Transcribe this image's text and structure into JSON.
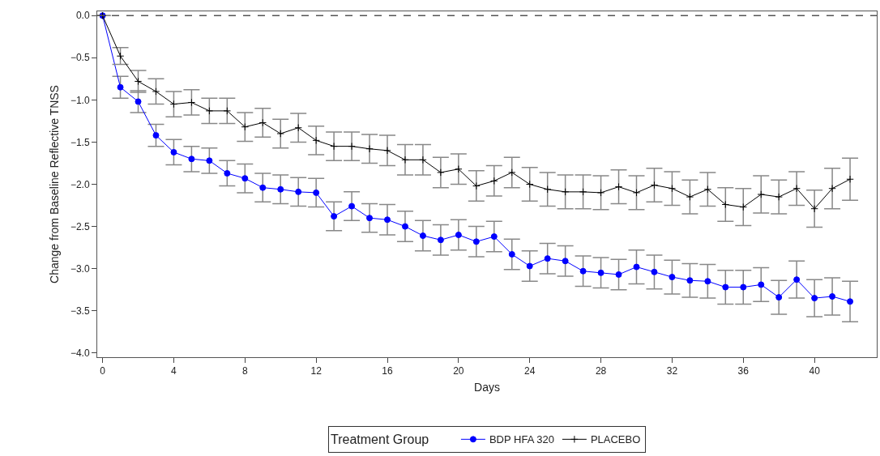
{
  "chart_data": {
    "type": "line",
    "xlabel": "Days",
    "ylabel": "Change from Baseline Reflective TNSS",
    "legend_title": "Treatment Group",
    "legend": "bottom",
    "grid": false,
    "line_style": "solid",
    "x": [
      0,
      1,
      2,
      3,
      4,
      5,
      6,
      7,
      8,
      9,
      10,
      11,
      12,
      13,
      14,
      15,
      16,
      17,
      18,
      19,
      20,
      21,
      22,
      23,
      24,
      25,
      26,
      27,
      28,
      29,
      30,
      31,
      32,
      33,
      34,
      35,
      36,
      37,
      38,
      39,
      40,
      41,
      42
    ],
    "xlim": [
      -0.3,
      43.5
    ],
    "xticks": [
      0,
      4,
      8,
      12,
      16,
      20,
      24,
      28,
      32,
      36,
      40
    ],
    "ylim": [
      -4.05,
      0.05
    ],
    "yticks": [
      {
        "value": 0,
        "label": "0.0"
      },
      {
        "value": -0.5,
        "label": "−0.5"
      },
      {
        "value": -1,
        "label": "−1.0"
      },
      {
        "value": -1.5,
        "label": "−1.5"
      },
      {
        "value": -2,
        "label": "−2.0"
      },
      {
        "value": -2.5,
        "label": "−2.5"
      },
      {
        "value": -3,
        "label": "−3.0"
      },
      {
        "value": -3.5,
        "label": "−3.5"
      },
      {
        "value": -4,
        "label": "−4.0"
      }
    ],
    "ref_lines": [
      {
        "axis": "y",
        "value": 0,
        "color": "#555555",
        "line_style": "dashed"
      }
    ],
    "series": [
      {
        "name": "BDP HFA 320",
        "color": "#0000ff",
        "marker": "circle",
        "values": [
          0,
          -0.85,
          -1.02,
          -1.42,
          -1.62,
          -1.7,
          -1.72,
          -1.87,
          -1.93,
          -2.04,
          -2.06,
          -2.09,
          -2.1,
          -2.38,
          -2.26,
          -2.4,
          -2.42,
          -2.5,
          -2.61,
          -2.66,
          -2.6,
          -2.68,
          -2.62,
          -2.83,
          -2.97,
          -2.88,
          -2.91,
          -3.03,
          -3.05,
          -3.07,
          -2.98,
          -3.04,
          -3.1,
          -3.14,
          -3.15,
          -3.22,
          -3.22,
          -3.19,
          -3.34,
          -3.13,
          -3.35,
          -3.33,
          -3.39
        ],
        "errors": [
          null,
          0.13,
          0.13,
          0.13,
          0.15,
          0.15,
          0.15,
          0.15,
          0.17,
          0.17,
          0.17,
          0.17,
          0.17,
          0.17,
          0.17,
          0.17,
          0.18,
          0.18,
          0.18,
          0.18,
          0.18,
          0.18,
          0.18,
          0.18,
          0.18,
          0.18,
          0.18,
          0.18,
          0.18,
          0.18,
          0.2,
          0.2,
          0.2,
          0.2,
          0.2,
          0.2,
          0.2,
          0.2,
          0.2,
          0.22,
          0.22,
          0.22,
          0.24
        ]
      },
      {
        "name": "PLACEBO",
        "color": "#000000",
        "marker": "cross",
        "values": [
          0,
          -0.48,
          -0.78,
          -0.9,
          -1.05,
          -1.03,
          -1.13,
          -1.13,
          -1.32,
          -1.27,
          -1.4,
          -1.33,
          -1.48,
          -1.55,
          -1.55,
          -1.58,
          -1.6,
          -1.71,
          -1.71,
          -1.86,
          -1.82,
          -2.02,
          -1.96,
          -1.86,
          -2.0,
          -2.06,
          -2.09,
          -2.09,
          -2.1,
          -2.03,
          -2.1,
          -2.01,
          -2.05,
          -2.15,
          -2.06,
          -2.24,
          -2.27,
          -2.12,
          -2.15,
          -2.05,
          -2.29,
          -2.05,
          -1.94
        ],
        "errors": [
          null,
          0.1,
          0.13,
          0.15,
          0.15,
          0.15,
          0.15,
          0.15,
          0.17,
          0.17,
          0.17,
          0.17,
          0.17,
          0.17,
          0.17,
          0.17,
          0.18,
          0.18,
          0.18,
          0.18,
          0.18,
          0.18,
          0.18,
          0.18,
          0.2,
          0.2,
          0.2,
          0.2,
          0.2,
          0.2,
          0.2,
          0.2,
          0.2,
          0.2,
          0.2,
          0.2,
          0.22,
          0.22,
          0.2,
          0.2,
          0.22,
          0.24,
          0.25
        ]
      }
    ]
  }
}
